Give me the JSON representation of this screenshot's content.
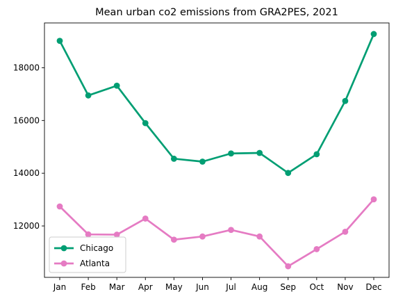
{
  "chart_data": {
    "type": "line",
    "title": "Mean urban co2 emissions from GRA2PES, 2021",
    "xlabel": "",
    "ylabel": "",
    "categories": [
      "Jan",
      "Feb",
      "Mar",
      "Apr",
      "May",
      "Jun",
      "Jul",
      "Aug",
      "Sep",
      "Oct",
      "Nov",
      "Dec"
    ],
    "series": [
      {
        "name": "Chicago",
        "color": "#009e73",
        "values": [
          19020,
          16950,
          17320,
          15900,
          14550,
          14440,
          14750,
          14770,
          14010,
          14720,
          16740,
          19280
        ]
      },
      {
        "name": "Atlanta",
        "color": "#e57bc3",
        "values": [
          12740,
          11680,
          11670,
          12280,
          11480,
          11600,
          11850,
          11600,
          10470,
          11120,
          11780,
          13010
        ]
      }
    ],
    "ylim": [
      10050,
      19700
    ],
    "yticks": [
      12000,
      14000,
      16000,
      18000
    ],
    "ytick_labels": [
      "12000",
      "14000",
      "16000",
      "18000"
    ],
    "grid": false,
    "legend": "lower-left"
  }
}
